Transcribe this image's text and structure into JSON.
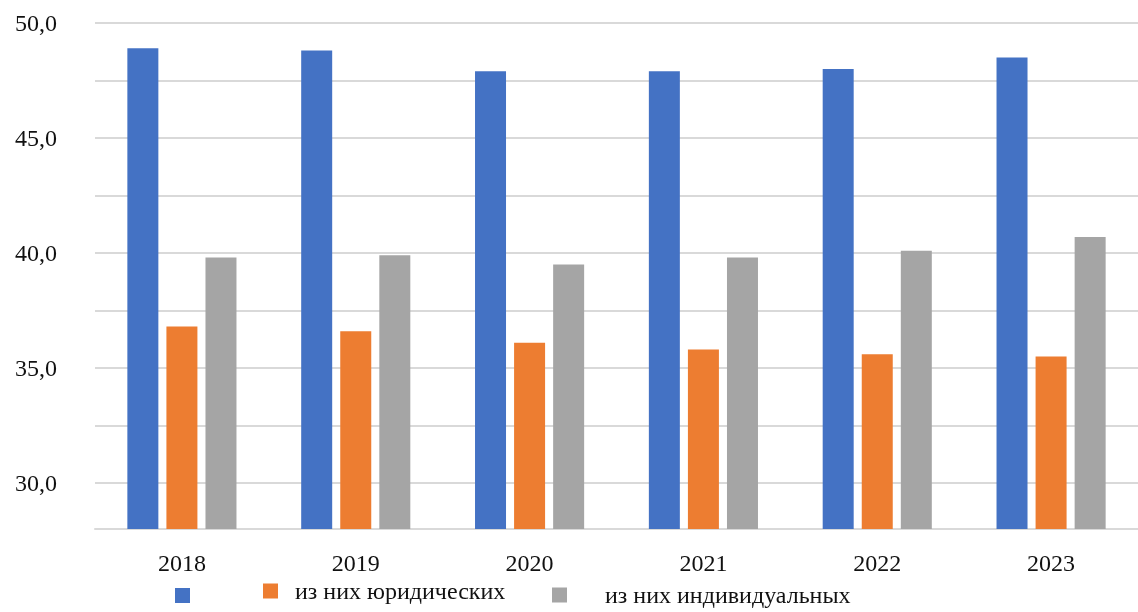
{
  "chart_data": {
    "type": "bar",
    "categories": [
      "2018",
      "2019",
      "2020",
      "2021",
      "2022",
      "2023"
    ],
    "series": [
      {
        "color": "#4472c4",
        "values": [
          48.9,
          48.8,
          47.9,
          47.9,
          48.0,
          48.5
        ]
      },
      {
        "name": "из них юридических",
        "color": "#ed7d31",
        "values": [
          36.8,
          36.6,
          36.1,
          35.8,
          35.6,
          35.5
        ]
      },
      {
        "name": "из них индивидуальных",
        "color": "#a5a5a5",
        "values": [
          39.8,
          39.9,
          39.5,
          39.8,
          40.1,
          40.7
        ]
      }
    ],
    "ylim": [
      28,
      50
    ],
    "yticks": [
      {
        "value": 30,
        "label": "30,0"
      },
      {
        "value": 32.5,
        "label": null
      },
      {
        "value": 35,
        "label": "35,0"
      },
      {
        "value": 37.5,
        "label": null
      },
      {
        "value": 40,
        "label": "40,0"
      },
      {
        "value": 42.5,
        "label": null
      },
      {
        "value": 45,
        "label": "45,0"
      },
      {
        "value": 47.5,
        "label": null
      },
      {
        "value": 50,
        "label": "50,0"
      }
    ],
    "grid": "y",
    "legend": "bottom"
  }
}
